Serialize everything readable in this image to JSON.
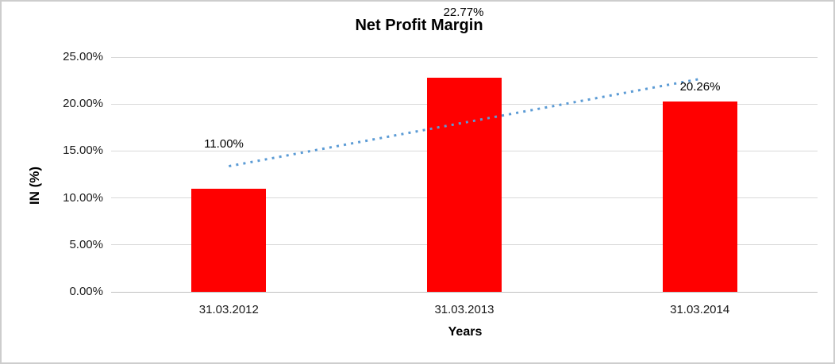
{
  "chart_data": {
    "type": "bar",
    "title": "Net Profit Margin",
    "xlabel": "Years",
    "ylabel": "IN (%)",
    "categories": [
      "31.03.2012",
      "31.03.2013",
      "31.03.2014"
    ],
    "values": [
      11.0,
      22.77,
      20.26
    ],
    "data_labels": [
      "11.00%",
      "22.77%",
      "20.26%"
    ],
    "ylim": [
      0,
      25
    ],
    "ytick_values": [
      0,
      5,
      10,
      15,
      20,
      25
    ],
    "ytick_labels": [
      "0.00%",
      "5.00%",
      "10.00%",
      "15.00%",
      "20.00%",
      "25.00%"
    ],
    "grid": true,
    "legend": "none",
    "bar_color": "#ff0000",
    "gridline_color": "#d9d9d9",
    "trendline": {
      "type": "linear",
      "style": "dotted",
      "color": "#5b9bd5",
      "start_value": 13.38,
      "end_value": 22.64
    }
  }
}
